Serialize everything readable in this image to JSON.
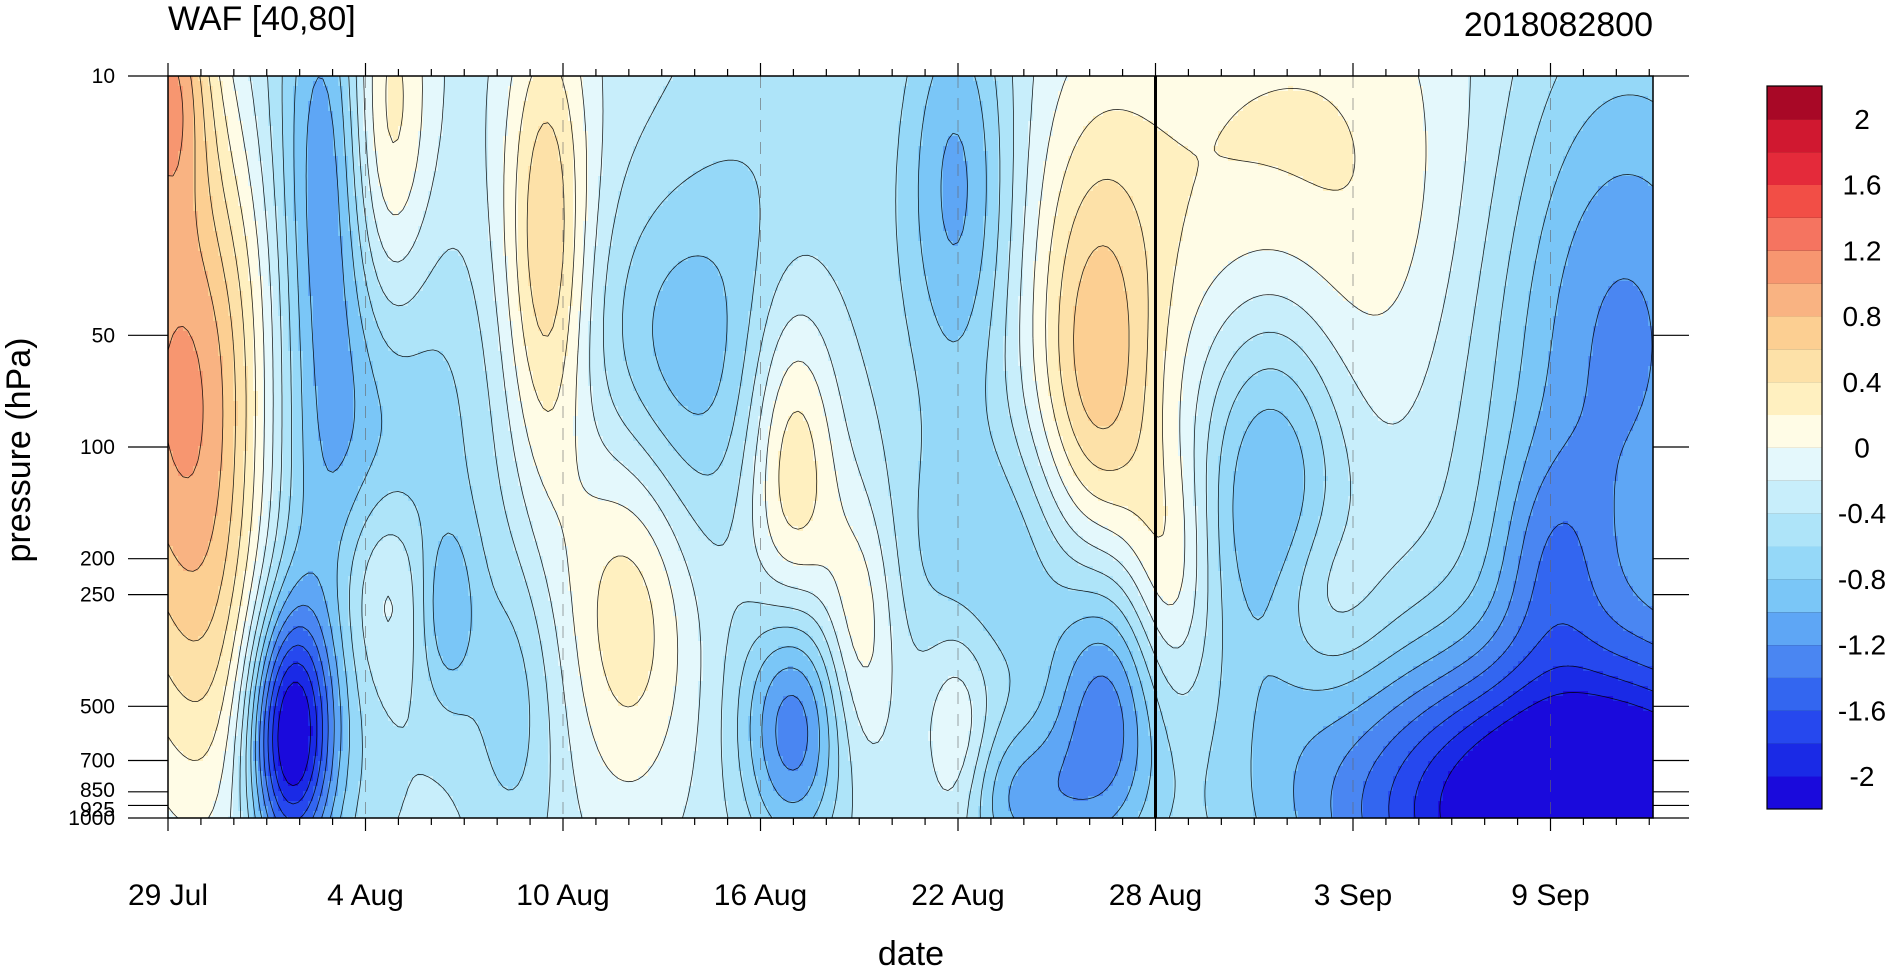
{
  "chart_data": {
    "type": "contour",
    "title": "WAF [40,80]",
    "subtitle": "2018082800",
    "xlabel": "date",
    "ylabel": "pressure (hPa)",
    "x_ticks": [
      {
        "label": "29 Jul",
        "day": 0
      },
      {
        "label": "4 Aug",
        "day": 6
      },
      {
        "label": "10 Aug",
        "day": 12
      },
      {
        "label": "16 Aug",
        "day": 18
      },
      {
        "label": "22 Aug",
        "day": 24
      },
      {
        "label": "28 Aug",
        "day": 30
      },
      {
        "label": "3 Sep",
        "day": 36
      },
      {
        "label": "9 Sep",
        "day": 42
      }
    ],
    "x_range_days": [
      0,
      45
    ],
    "reference_day": 30,
    "y_axis": "log-pressure, reversed",
    "y_range_hpa": [
      10,
      1000
    ],
    "y_ticks": [
      {
        "label": "10",
        "p": 10
      },
      {
        "label": "50",
        "p": 50
      },
      {
        "label": "100",
        "p": 100
      },
      {
        "label": "200",
        "p": 200
      },
      {
        "label": "250",
        "p": 250
      },
      {
        "label": "500",
        "p": 500
      },
      {
        "label": "700",
        "p": 700
      },
      {
        "label": "850",
        "p": 850
      },
      {
        "label": "925",
        "p": 925
      },
      {
        "label": "1000",
        "p": 1000
      }
    ],
    "colorbar": {
      "levels": [
        -2.2,
        -2,
        -1.8,
        -1.6,
        -1.4,
        -1.2,
        -1,
        -0.8,
        -0.6,
        -0.4,
        -0.2,
        0,
        0.2,
        0.4,
        0.6,
        0.8,
        1,
        1.2,
        1.4,
        1.6,
        1.8,
        2,
        2.2
      ],
      "labels": [
        "2",
        "1.6",
        "1.2",
        "0.8",
        "0.4",
        "0",
        "-0.4",
        "-0.8",
        "-1.2",
        "-1.6",
        "-2"
      ],
      "label_values": [
        2,
        1.6,
        1.2,
        0.8,
        0.4,
        0,
        -0.4,
        -0.8,
        -1.2,
        -1.6,
        -2
      ],
      "colors": [
        "#1a0adc",
        "#1a2ae6",
        "#2648ee",
        "#3366f0",
        "#4a86f2",
        "#5ea6f5",
        "#7ac6f7",
        "#95d8f8",
        "#aee4f9",
        "#c8eefb",
        "#e4f8fc",
        "#fffce6",
        "#fff0c0",
        "#fde1a8",
        "#fccf92",
        "#f9b382",
        "#f79670",
        "#f57460",
        "#f24e46",
        "#e42a3a",
        "#d01830",
        "#a80826"
      ]
    },
    "blobs": [
      {
        "d": 9,
        "p": 40,
        "sd": 5.5,
        "sp": 1.0,
        "a": 0.3
      },
      {
        "d": 0.5,
        "p": 70,
        "sd": 2.2,
        "sp": 1.2,
        "a": 1.25
      },
      {
        "d": 0,
        "p": 10,
        "sd": 0.9,
        "sp": 0.6,
        "a": 1.0
      },
      {
        "d": 1.5,
        "p": 400,
        "sd": 1.6,
        "sp": 0.9,
        "a": 0.45
      },
      {
        "d": 4,
        "p": 100,
        "sd": 1.4,
        "sp": 2.0,
        "a": -0.5
      },
      {
        "d": 5,
        "p": 15,
        "sd": 1.0,
        "sp": 1.0,
        "a": -0.7
      },
      {
        "d": 6.5,
        "p": 15,
        "sd": 1.0,
        "sp": 1.0,
        "a": 0.9
      },
      {
        "d": 6,
        "p": 80,
        "sd": 1.8,
        "sp": 1.3,
        "a": -0.6
      },
      {
        "d": 8.5,
        "p": 60,
        "sd": 2.5,
        "sp": 1.0,
        "a": -0.4
      },
      {
        "d": 3.7,
        "p": 600,
        "sd": 0.9,
        "sp": 0.55,
        "a": -1.8
      },
      {
        "d": 6.5,
        "p": 240,
        "sd": 1.0,
        "sp": 0.5,
        "a": 0.6
      },
      {
        "d": 8.5,
        "p": 280,
        "sd": 0.6,
        "sp": 0.4,
        "a": -0.5
      },
      {
        "d": 11.5,
        "p": 30,
        "sd": 0.9,
        "sp": 1.1,
        "a": 0.85
      },
      {
        "d": 10.5,
        "p": 500,
        "sd": 1.0,
        "sp": 0.7,
        "a": -0.4
      },
      {
        "d": 14,
        "p": 250,
        "sd": 1.4,
        "sp": 0.9,
        "a": 0.7
      },
      {
        "d": 15,
        "p": 60,
        "sd": 2.0,
        "sp": 0.8,
        "a": -0.7
      },
      {
        "d": 18.5,
        "p": 30,
        "sd": 2.5,
        "sp": 1.2,
        "a": -0.35
      },
      {
        "d": 19,
        "p": 110,
        "sd": 1.0,
        "sp": 0.8,
        "a": 0.85
      },
      {
        "d": 19,
        "p": 550,
        "sd": 1.1,
        "sp": 0.55,
        "a": -1.1
      },
      {
        "d": 21,
        "p": 300,
        "sd": 0.8,
        "sp": 0.6,
        "a": 0.55
      },
      {
        "d": 24,
        "p": 20,
        "sd": 1.2,
        "sp": 1.0,
        "a": -0.8
      },
      {
        "d": 25.5,
        "p": 200,
        "sd": 2.5,
        "sp": 0.6,
        "a": -0.5
      },
      {
        "d": 24,
        "p": 620,
        "sd": 0.7,
        "sp": 0.5,
        "a": 0.45
      },
      {
        "d": 28.2,
        "p": 70,
        "sd": 1.3,
        "sp": 1.0,
        "a": 0.9
      },
      {
        "d": 30.4,
        "p": 220,
        "sd": 0.9,
        "sp": 0.6,
        "a": 0.55
      },
      {
        "d": 28.5,
        "p": 500,
        "sd": 1.2,
        "sp": 0.6,
        "a": -1.0
      },
      {
        "d": 26,
        "p": 900,
        "sd": 1.5,
        "sp": 0.35,
        "a": -0.7
      },
      {
        "d": 34,
        "p": 20,
        "sd": 5.0,
        "sp": 1.2,
        "a": 0.6
      },
      {
        "d": 33.5,
        "p": 120,
        "sd": 1.6,
        "sp": 0.9,
        "a": -0.9
      },
      {
        "d": 35,
        "p": 260,
        "sd": 1.2,
        "sp": 0.4,
        "a": 0.35
      },
      {
        "d": 44,
        "p": 50,
        "sd": 3.0,
        "sp": 1.4,
        "a": -1.0
      },
      {
        "d": 42,
        "p": 200,
        "sd": 1.2,
        "sp": 0.5,
        "a": -0.5
      },
      {
        "d": 43,
        "p": 950,
        "sd": 5.5,
        "sp": 0.7,
        "a": -2.3
      }
    ],
    "background": -0.3
  }
}
